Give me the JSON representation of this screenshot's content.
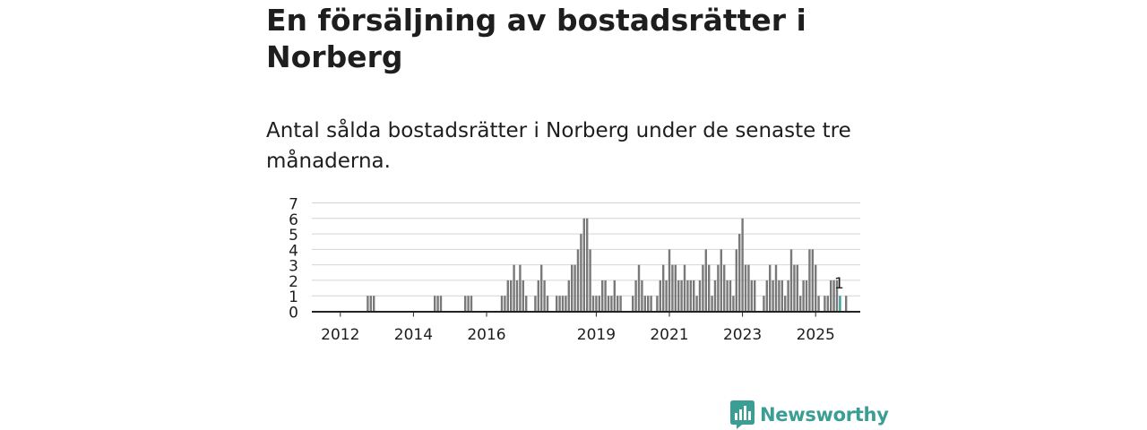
{
  "header": {
    "title": "En försäljning av bostadsrätter i Norberg",
    "subtitle": "Antal sålda bostadsrätter i Norberg under de senaste tre månaderna."
  },
  "brand": {
    "name": "Newsworthy"
  },
  "colors": {
    "bar": "#797979",
    "highlight": "#3a9e94",
    "grid": "#d4d4d4",
    "axis": "#222222",
    "text": "#1e1e1e"
  },
  "chart_data": {
    "type": "bar",
    "title": "Antal sålda bostadsrätter i Norberg under de senaste tre månaderna.",
    "xlabel": "",
    "ylabel": "",
    "ylim": [
      0,
      7
    ],
    "yticks": [
      "0",
      "1",
      "2",
      "3",
      "4",
      "5",
      "6",
      "7"
    ],
    "grid": true,
    "x_start": "2011-04",
    "xticks": [
      {
        "label": "2012",
        "index": 9
      },
      {
        "label": "2014",
        "index": 33
      },
      {
        "label": "2016",
        "index": 57
      },
      {
        "label": "2019",
        "index": 93
      },
      {
        "label": "2021",
        "index": 117
      },
      {
        "label": "2023",
        "index": 141
      },
      {
        "label": "2025",
        "index": 165
      }
    ],
    "values": [
      0,
      0,
      0,
      0,
      0,
      0,
      0,
      0,
      0,
      0,
      0,
      0,
      0,
      0,
      0,
      0,
      0,
      0,
      1,
      1,
      1,
      0,
      0,
      0,
      0,
      0,
      0,
      0,
      0,
      0,
      0,
      0,
      0,
      0,
      0,
      0,
      0,
      0,
      0,
      0,
      1,
      1,
      1,
      0,
      0,
      0,
      0,
      0,
      0,
      0,
      1,
      1,
      1,
      0,
      0,
      0,
      0,
      0,
      0,
      0,
      0,
      0,
      1,
      1,
      2,
      2,
      3,
      2,
      3,
      2,
      1,
      0,
      0,
      1,
      2,
      3,
      2,
      1,
      0,
      0,
      1,
      1,
      1,
      1,
      2,
      3,
      3,
      4,
      5,
      6,
      6,
      4,
      1,
      1,
      1,
      2,
      2,
      1,
      1,
      2,
      1,
      1,
      0,
      0,
      0,
      1,
      2,
      3,
      2,
      1,
      1,
      1,
      0,
      1,
      2,
      3,
      2,
      4,
      3,
      3,
      2,
      2,
      3,
      2,
      2,
      2,
      1,
      2,
      3,
      4,
      3,
      1,
      2,
      3,
      4,
      3,
      2,
      2,
      1,
      4,
      5,
      6,
      3,
      3,
      2,
      2,
      0,
      0,
      1,
      2,
      3,
      2,
      3,
      2,
      2,
      1,
      2,
      4,
      3,
      3,
      1,
      2,
      2,
      4,
      4,
      3,
      1,
      0,
      1,
      1,
      2,
      2,
      2,
      1,
      0,
      1
    ],
    "highlight_index": 173,
    "highlight_label": "1"
  }
}
